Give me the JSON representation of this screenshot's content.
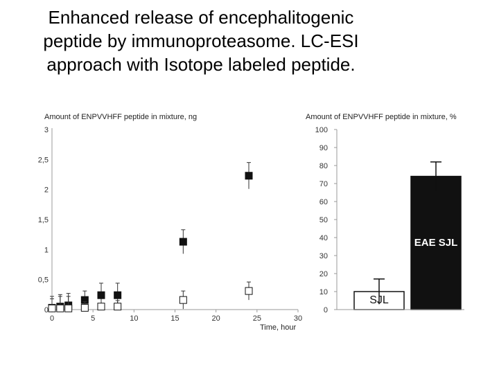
{
  "slide": {
    "title_lines": [
      "Enhanced release of encephalitogenic",
      "peptide by immunoproteasome. LC-ESI",
      "approach with Isotope labeled peptide."
    ]
  },
  "chart_data": [
    {
      "type": "scatter",
      "title": "",
      "ylabel": "Amount of ENPVVHFF peptide in mixture, ng",
      "xlabel": "Time, hour",
      "xlim": [
        0,
        30
      ],
      "ylim": [
        0,
        3
      ],
      "xticks": [
        "0",
        "5",
        "10",
        "15",
        "20",
        "25",
        "30"
      ],
      "yticks": [
        "0",
        "0,5",
        "1",
        "1,5",
        "2",
        "2,5",
        "3"
      ],
      "marker_colors": {
        "filled": "#111111",
        "open": "#ffffff"
      },
      "series": [
        {
          "marker": "filled-square",
          "x": [
            0,
            1,
            2,
            4,
            6,
            8,
            16,
            24
          ],
          "y": [
            0.03,
            0.05,
            0.07,
            0.16,
            0.24,
            0.24,
            1.13,
            2.23
          ],
          "error": [
            0.15,
            0.2,
            0.2,
            0.15,
            0.2,
            0.2,
            0.2,
            0.22
          ]
        },
        {
          "marker": "open-square",
          "x": [
            0,
            1,
            2,
            4,
            6,
            8,
            16,
            24
          ],
          "y": [
            0.02,
            0.02,
            0.02,
            0.03,
            0.05,
            0.05,
            0.16,
            0.31
          ],
          "error": [
            0.2,
            0.2,
            0.2,
            0.1,
            0.05,
            0.1,
            0.15,
            0.15
          ]
        }
      ]
    },
    {
      "type": "bar",
      "title": "",
      "ylabel": "Amount of ENPVVHFF peptide in mixture, %",
      "ylim": [
        0,
        100
      ],
      "yticks": [
        "0",
        "10",
        "20",
        "30",
        "40",
        "50",
        "60",
        "70",
        "80",
        "90",
        "100"
      ],
      "categories": [
        "SJL",
        "EAE SJL"
      ],
      "values": [
        10,
        74
      ],
      "error": [
        7,
        8
      ],
      "bar_colors": [
        "#ffffff",
        "#111111"
      ],
      "label_colors": [
        "#111111",
        "#ffffff"
      ]
    }
  ]
}
